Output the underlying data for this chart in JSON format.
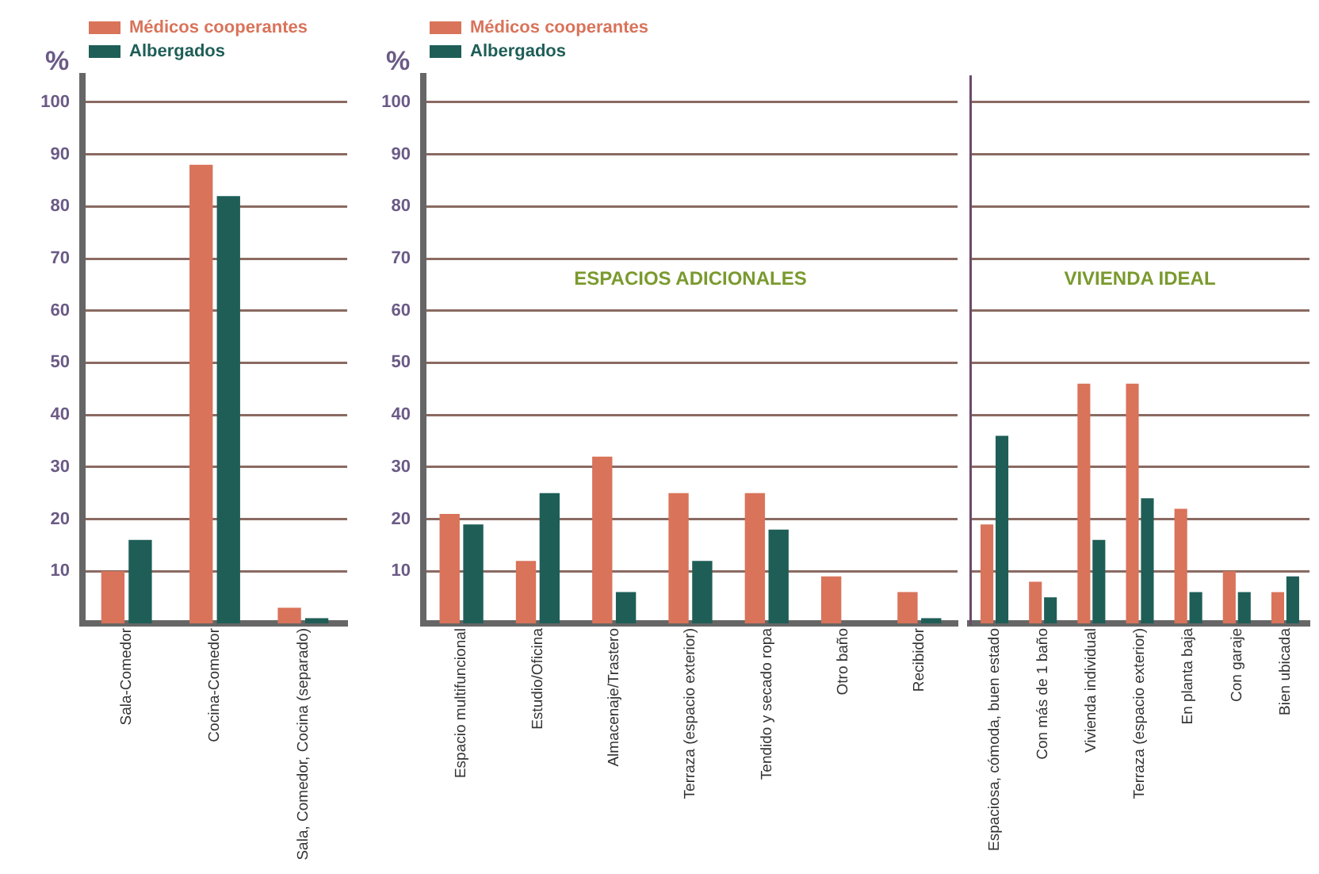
{
  "chart_data": [
    {
      "type": "bar",
      "ylabel": "%",
      "categories": [
        "Sala-Comedor",
        "Cocina-Comedor",
        "Sala, Comedor, Cocina (separado)"
      ],
      "series": [
        {
          "name": "Médicos cooperantes",
          "color": "#d9735a",
          "values": [
            10,
            88,
            3
          ]
        },
        {
          "name": "Albergados",
          "color": "#1e5e57",
          "values": [
            16,
            82,
            1
          ]
        }
      ],
      "ylim": [
        0,
        105
      ],
      "yticks": [
        10,
        20,
        30,
        40,
        50,
        60,
        70,
        80,
        90,
        100
      ],
      "grid": "y",
      "legend": "top left"
    },
    {
      "type": "bar",
      "ylabel": "%",
      "annotations": [
        "ESPACIOS ADICIONALES"
      ],
      "categories": [
        "Espacio multifuncional",
        "Estudio/Oficina",
        "Almacenaje/Trastero",
        "Terraza (espacio exterior)",
        "Tendido y secado ropa",
        "Otro baño",
        "Recibidor"
      ],
      "series": [
        {
          "name": "Médicos cooperantes",
          "color": "#d9735a",
          "values": [
            21,
            12,
            32,
            25,
            25,
            9,
            6
          ]
        },
        {
          "name": "Albergados",
          "color": "#1e5e57",
          "values": [
            19,
            25,
            6,
            12,
            18,
            0,
            1
          ]
        }
      ],
      "ylim": [
        0,
        105
      ],
      "yticks": [
        10,
        20,
        30,
        40,
        50,
        60,
        70,
        80,
        90,
        100
      ],
      "grid": "y",
      "legend": "top left"
    },
    {
      "type": "bar",
      "annotations": [
        "VIVIENDA IDEAL"
      ],
      "categories": [
        "Espaciosa, cómoda, buen estado",
        "Con más de 1 baño",
        "Vivienda individual",
        "Terraza (espacio exterior)",
        "En planta baja",
        "Con garaje",
        "Bien ubicada"
      ],
      "series": [
        {
          "color": "#d9735a",
          "values": [
            19,
            8,
            46,
            46,
            22,
            10,
            6
          ]
        },
        {
          "color": "#1e5e57",
          "values": [
            36,
            5,
            16,
            24,
            6,
            6,
            9
          ]
        }
      ],
      "ylim": [
        0,
        105
      ],
      "yticks": [
        10,
        20,
        30,
        40,
        50,
        60,
        70,
        80,
        90,
        100
      ],
      "grid": "y",
      "tick_labels": "x"
    }
  ]
}
